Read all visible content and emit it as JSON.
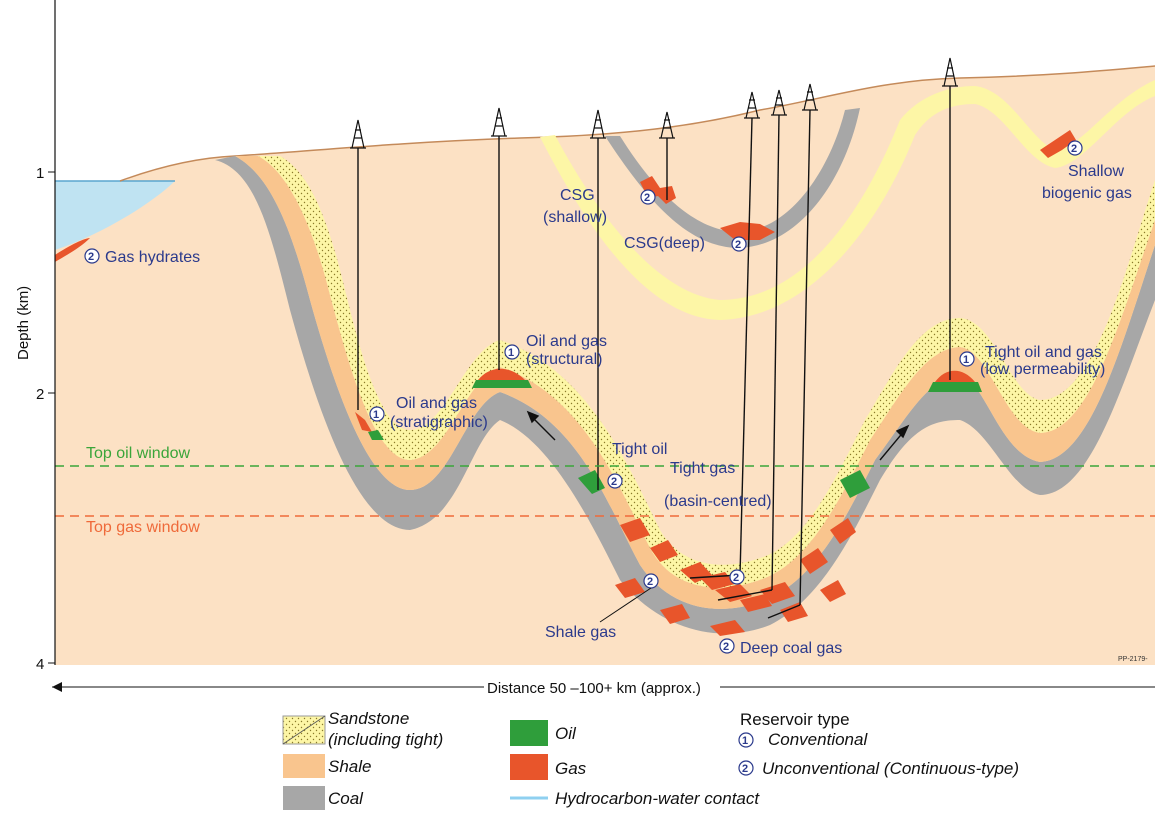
{
  "axis": {
    "y_label": "Depth (km)",
    "y_ticks": [
      "1",
      "2",
      "4"
    ],
    "x_label": "Distance 50 –100+ km (approx.)"
  },
  "labels": {
    "gas_hydrates": "Gas hydrates",
    "csg_shallow_1": "CSG",
    "csg_shallow_2": "(shallow)",
    "csg_deep": "CSG(deep)",
    "shallow_biogenic_1": "Shallow",
    "shallow_biogenic_2": "biogenic gas",
    "oil_gas_structural_1": "Oil and gas",
    "oil_gas_structural_2": "(structural)",
    "oil_gas_strat_1": "Oil and gas",
    "oil_gas_strat_2": "(stratigraphic)",
    "tight_oil_gas_1": "Tight oil and gas",
    "tight_oil_gas_2": "(low permeability)",
    "tight_oil": "Tight oil",
    "tight_gas_1": "Tight gas",
    "tight_gas_2": "(basin-centred)",
    "shale_gas": "Shale gas",
    "deep_coal_gas": "Deep coal gas",
    "top_oil_window": "Top oil window",
    "top_gas_window": "Top gas window",
    "code": "PP-2179-"
  },
  "markers": {
    "conventional": "1",
    "unconventional": "2"
  },
  "legend": {
    "sandstone_1": "Sandstone",
    "sandstone_2": "(including tight)",
    "shale": "Shale",
    "coal": "Coal",
    "oil": "Oil",
    "gas": "Gas",
    "hc_water": "Hydrocarbon-water contact",
    "reservoir_type": "Reservoir type",
    "conventional": "Conventional",
    "unconventional": "Unconventional (Continuous-type)"
  },
  "colors": {
    "background": "#fce1c4",
    "sea": "#bfe3f2",
    "sandstone": "#fdf6a6",
    "shale": "#f9c58e",
    "coal": "#a7a7a7",
    "oil": "#2f9e3b",
    "gas": "#e8552b",
    "oil_window": "#3aa53a",
    "gas_window": "#ef6a3a",
    "label": "#2b3a8c"
  }
}
